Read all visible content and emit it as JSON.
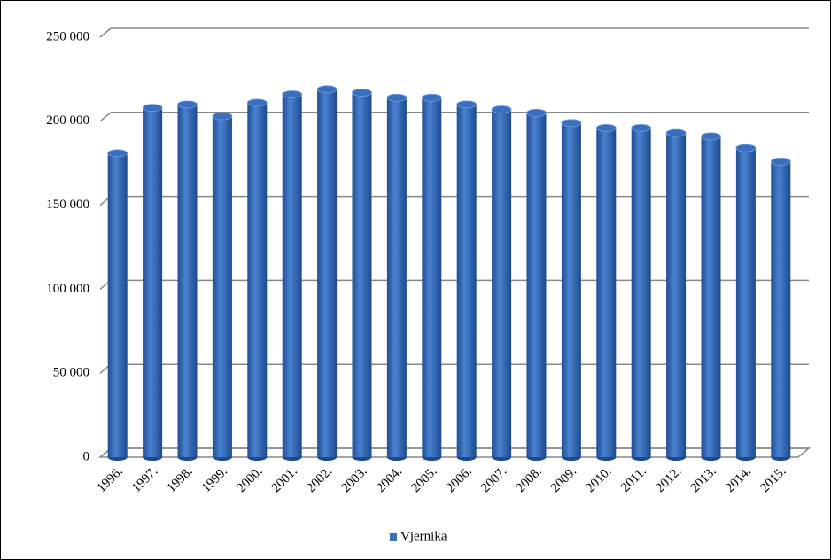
{
  "chart_data": {
    "type": "bar",
    "categories": [
      "1996.",
      "1997.",
      "1998.",
      "1999.",
      "2000.",
      "2001.",
      "2002.",
      "2003.",
      "2004.",
      "2005.",
      "2006.",
      "2007.",
      "2008.",
      "2009.",
      "2010.",
      "2011.",
      "2012.",
      "2013.",
      "2014.",
      "2015."
    ],
    "series": [
      {
        "name": "Vjernika",
        "color": "#3a6fc0",
        "values": [
          181000,
          208000,
          210000,
          203000,
          211000,
          216000,
          219000,
          217000,
          214000,
          214000,
          210000,
          207000,
          205000,
          199000,
          196000,
          196000,
          193000,
          191000,
          184000,
          176000
        ]
      }
    ],
    "ylim": [
      0,
      250000
    ],
    "yticks": [
      {
        "value": 0,
        "label": "0"
      },
      {
        "value": 50000,
        "label": "50 000"
      },
      {
        "value": 100000,
        "label": "100 000"
      },
      {
        "value": 150000,
        "label": "150 000"
      },
      {
        "value": 200000,
        "label": "200 000"
      },
      {
        "value": 250000,
        "label": "250 000"
      }
    ],
    "grid": true,
    "legend": "bottom"
  }
}
